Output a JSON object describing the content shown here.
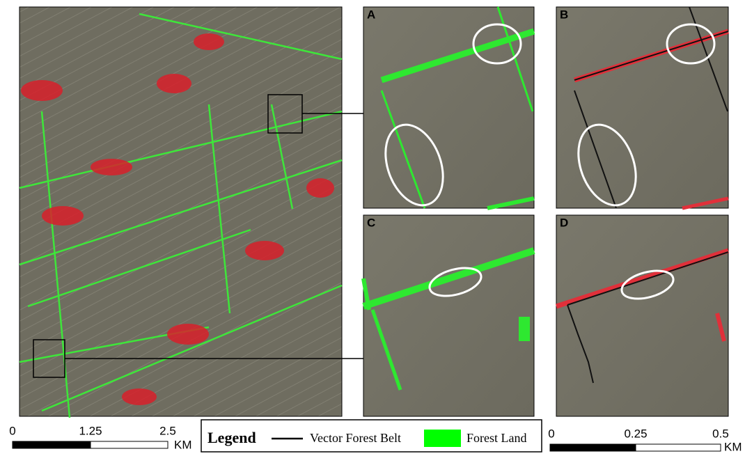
{
  "panels": {
    "A": "A",
    "B": "B",
    "C": "C",
    "D": "D"
  },
  "scale_left": {
    "ticks": [
      "0",
      "1.25",
      "2.5"
    ],
    "unit": "KM"
  },
  "scale_right": {
    "ticks": [
      "0",
      "0.25",
      "0.5"
    ],
    "unit": "KM"
  },
  "legend": {
    "title": "Legend",
    "items": [
      "Vector Forest Belt",
      "Forest Land"
    ]
  }
}
